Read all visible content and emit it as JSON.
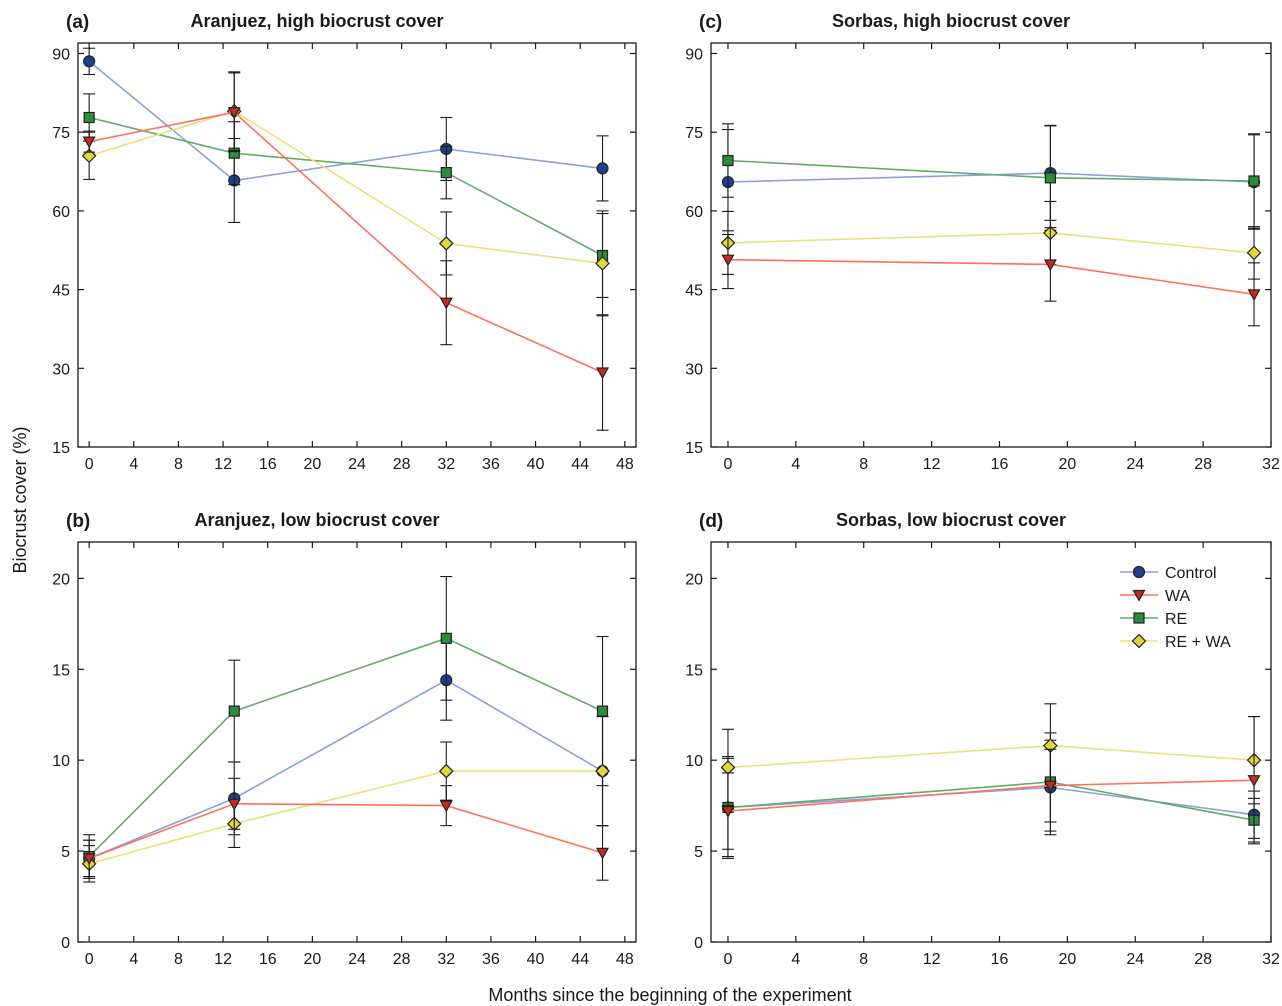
{
  "figure": {
    "xlabel": "Months since the beginning of the experiment",
    "ylabel": "Biocrust cover (%)"
  },
  "legend": {
    "position": "top-right of panel (d)",
    "entries": [
      "Control",
      "WA",
      "RE",
      "RE + WA"
    ]
  },
  "series_styles": [
    {
      "name": "Control",
      "marker": "circle",
      "line_color": "#8ca0e0",
      "fill_color": "#1f3f8f"
    },
    {
      "name": "WA",
      "marker": "triangle-down",
      "line_color": "#ff7060",
      "fill_color": "#c42a1e"
    },
    {
      "name": "RE",
      "marker": "square",
      "line_color": "#66aa66",
      "fill_color": "#2f8a3a"
    },
    {
      "name": "RE + WA",
      "marker": "diamond",
      "line_color": "#ece07a",
      "fill_color": "#e0d83a"
    }
  ],
  "chart_data": [
    {
      "type": "line",
      "panel": "(a)",
      "title": "Aranjuez, high biocrust cover",
      "x": [
        0,
        13,
        32,
        46
      ],
      "xlim": [
        -1,
        49
      ],
      "xticks": [
        0,
        4,
        8,
        12,
        16,
        20,
        24,
        28,
        32,
        36,
        40,
        44,
        48
      ],
      "ylim": [
        15,
        92
      ],
      "yticks": [
        15,
        30,
        45,
        60,
        75,
        90
      ],
      "grid": false,
      "series": [
        {
          "name": "Control",
          "values": [
            88.5,
            65.8,
            71.8,
            68.1
          ],
          "err": [
            2.5,
            8,
            6,
            6.2
          ]
        },
        {
          "name": "WA",
          "values": [
            73.2,
            78.8,
            42.5,
            29.2
          ],
          "err": [
            2,
            7.5,
            8,
            11
          ]
        },
        {
          "name": "RE",
          "values": [
            77.8,
            71,
            67.3,
            51.5
          ],
          "err": [
            4.5,
            6,
            5,
            8
          ]
        },
        {
          "name": "RE + WA",
          "values": [
            70.5,
            79,
            53.8,
            50
          ],
          "err": [
            4.5,
            7.5,
            6,
            10
          ]
        }
      ]
    },
    {
      "type": "line",
      "panel": "(c)",
      "title": "Sorbas, high biocrust cover",
      "x": [
        0,
        19,
        31
      ],
      "xlim": [
        -1,
        32
      ],
      "xticks": [
        0,
        4,
        8,
        12,
        16,
        20,
        24,
        28,
        32
      ],
      "ylim": [
        15,
        92
      ],
      "yticks": [
        15,
        30,
        45,
        60,
        75,
        90
      ],
      "grid": false,
      "series": [
        {
          "name": "Control",
          "values": [
            65.5,
            67.2,
            65.5
          ],
          "err": [
            10,
            9,
            9
          ]
        },
        {
          "name": "WA",
          "values": [
            50.7,
            49.8,
            44.1
          ],
          "err": [
            5.5,
            7,
            6
          ]
        },
        {
          "name": "RE",
          "values": [
            69.6,
            66.3,
            65.7
          ],
          "err": [
            7,
            10,
            9
          ]
        },
        {
          "name": "RE + WA",
          "values": [
            53.9,
            55.8,
            52
          ],
          "err": [
            6,
            6,
            5
          ]
        }
      ]
    },
    {
      "type": "line",
      "panel": "(b)",
      "title": "Aranjuez, low biocrust cover",
      "x": [
        0,
        13,
        32,
        46
      ],
      "xlim": [
        -1,
        49
      ],
      "xticks": [
        0,
        4,
        8,
        12,
        16,
        20,
        24,
        28,
        32,
        36,
        40,
        44,
        48
      ],
      "ylim": [
        0,
        22
      ],
      "yticks": [
        0,
        5,
        10,
        15,
        20
      ],
      "grid": false,
      "series": [
        {
          "name": "Control",
          "values": [
            4.6,
            7.9,
            14.4,
            9.4
          ],
          "err": [
            1,
            2,
            2.2,
            3
          ]
        },
        {
          "name": "WA",
          "values": [
            4.6,
            7.6,
            7.5,
            4.9
          ],
          "err": [
            1,
            1.4,
            1.1,
            1.5
          ]
        },
        {
          "name": "RE",
          "values": [
            4.7,
            12.7,
            16.7,
            12.7
          ],
          "err": [
            1.2,
            2.8,
            3.4,
            4.1
          ]
        },
        {
          "name": "RE + WA",
          "values": [
            4.3,
            6.5,
            9.4,
            9.4
          ],
          "err": [
            1,
            1.3,
            1.6,
            3
          ]
        }
      ]
    },
    {
      "type": "line",
      "panel": "(d)",
      "title": "Sorbas, low biocrust cover",
      "x": [
        0,
        19,
        31
      ],
      "xlim": [
        -1,
        32
      ],
      "xticks": [
        0,
        4,
        8,
        12,
        16,
        20,
        24,
        28,
        32
      ],
      "ylim": [
        0,
        22
      ],
      "yticks": [
        0,
        5,
        10,
        15,
        20
      ],
      "grid": false,
      "series": [
        {
          "name": "Control",
          "values": [
            7.4,
            8.5,
            7
          ],
          "err": [
            2.7,
            2.6,
            1.3
          ]
        },
        {
          "name": "WA",
          "values": [
            7.2,
            8.6,
            8.9
          ],
          "err": [
            2.1,
            2,
            3.5
          ]
        },
        {
          "name": "RE",
          "values": [
            7.4,
            8.8,
            6.7
          ],
          "err": [
            2.8,
            2.7,
            1.2
          ]
        },
        {
          "name": "RE + WA",
          "values": [
            9.6,
            10.8,
            10
          ],
          "err": [
            2.1,
            2.3,
            2.4
          ]
        }
      ]
    }
  ]
}
